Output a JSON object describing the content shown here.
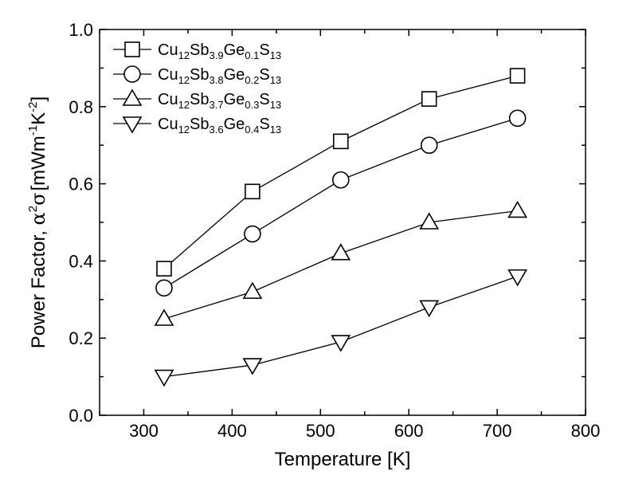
{
  "chart_data": {
    "type": "line",
    "title": "",
    "xlabel": "Temperature [K]",
    "ylabel": "Power Factor, α²σ [mWm⁻¹K⁻²]",
    "ylabel_parts": {
      "prefix": "Power Factor, ",
      "alpha": "α",
      "sup1": "2",
      "sigma": "σ",
      "units_open": "[mWm",
      "sup2": "-1",
      "k": "K",
      "sup3": "-2",
      "units_close": "]"
    },
    "xlim": [
      250,
      800
    ],
    "ylim": [
      0.0,
      1.0
    ],
    "x_ticks": [
      "300",
      "400",
      "500",
      "600",
      "700",
      "800"
    ],
    "y_ticks": [
      "0.0",
      "0.2",
      "0.4",
      "0.6",
      "0.8",
      "1.0"
    ],
    "x_tick_values": [
      300,
      400,
      500,
      600,
      700,
      800
    ],
    "y_tick_values": [
      0.0,
      0.2,
      0.4,
      0.6,
      0.8,
      1.0
    ],
    "grid": false,
    "legend_position": "top-left",
    "x": [
      323,
      423,
      523,
      623,
      723
    ],
    "series": [
      {
        "name": "Cu12Sb3.9Ge0.1S13",
        "label_parts": [
          [
            "Cu",
            false
          ],
          [
            "12",
            true
          ],
          [
            "Sb",
            false
          ],
          [
            "3.9",
            true
          ],
          [
            "Ge",
            false
          ],
          [
            "0.1",
            true
          ],
          [
            "S",
            false
          ],
          [
            "13",
            true
          ]
        ],
        "marker": "square",
        "values": [
          0.38,
          0.58,
          0.71,
          0.82,
          0.88
        ]
      },
      {
        "name": "Cu12Sb3.8Ge0.2S13",
        "label_parts": [
          [
            "Cu",
            false
          ],
          [
            "12",
            true
          ],
          [
            "Sb",
            false
          ],
          [
            "3.8",
            true
          ],
          [
            "Ge",
            false
          ],
          [
            "0.2",
            true
          ],
          [
            "S",
            false
          ],
          [
            "13",
            true
          ]
        ],
        "marker": "circle",
        "values": [
          0.33,
          0.47,
          0.61,
          0.7,
          0.77
        ]
      },
      {
        "name": "Cu12Sb3.7Ge0.3S13",
        "label_parts": [
          [
            "Cu",
            false
          ],
          [
            "12",
            true
          ],
          [
            "Sb",
            false
          ],
          [
            "3.7",
            true
          ],
          [
            "Ge",
            false
          ],
          [
            "0.3",
            true
          ],
          [
            "S",
            false
          ],
          [
            "13",
            true
          ]
        ],
        "marker": "triangle-up",
        "values": [
          0.25,
          0.32,
          0.42,
          0.5,
          0.53
        ]
      },
      {
        "name": "Cu12Sb3.6Ge0.4S13",
        "label_parts": [
          [
            "Cu",
            false
          ],
          [
            "12",
            true
          ],
          [
            "Sb",
            false
          ],
          [
            "3.6",
            true
          ],
          [
            "Ge",
            false
          ],
          [
            "0.4",
            true
          ],
          [
            "S",
            false
          ],
          [
            "13",
            true
          ]
        ],
        "marker": "triangle-down",
        "values": [
          0.1,
          0.13,
          0.19,
          0.28,
          0.36
        ]
      }
    ]
  }
}
